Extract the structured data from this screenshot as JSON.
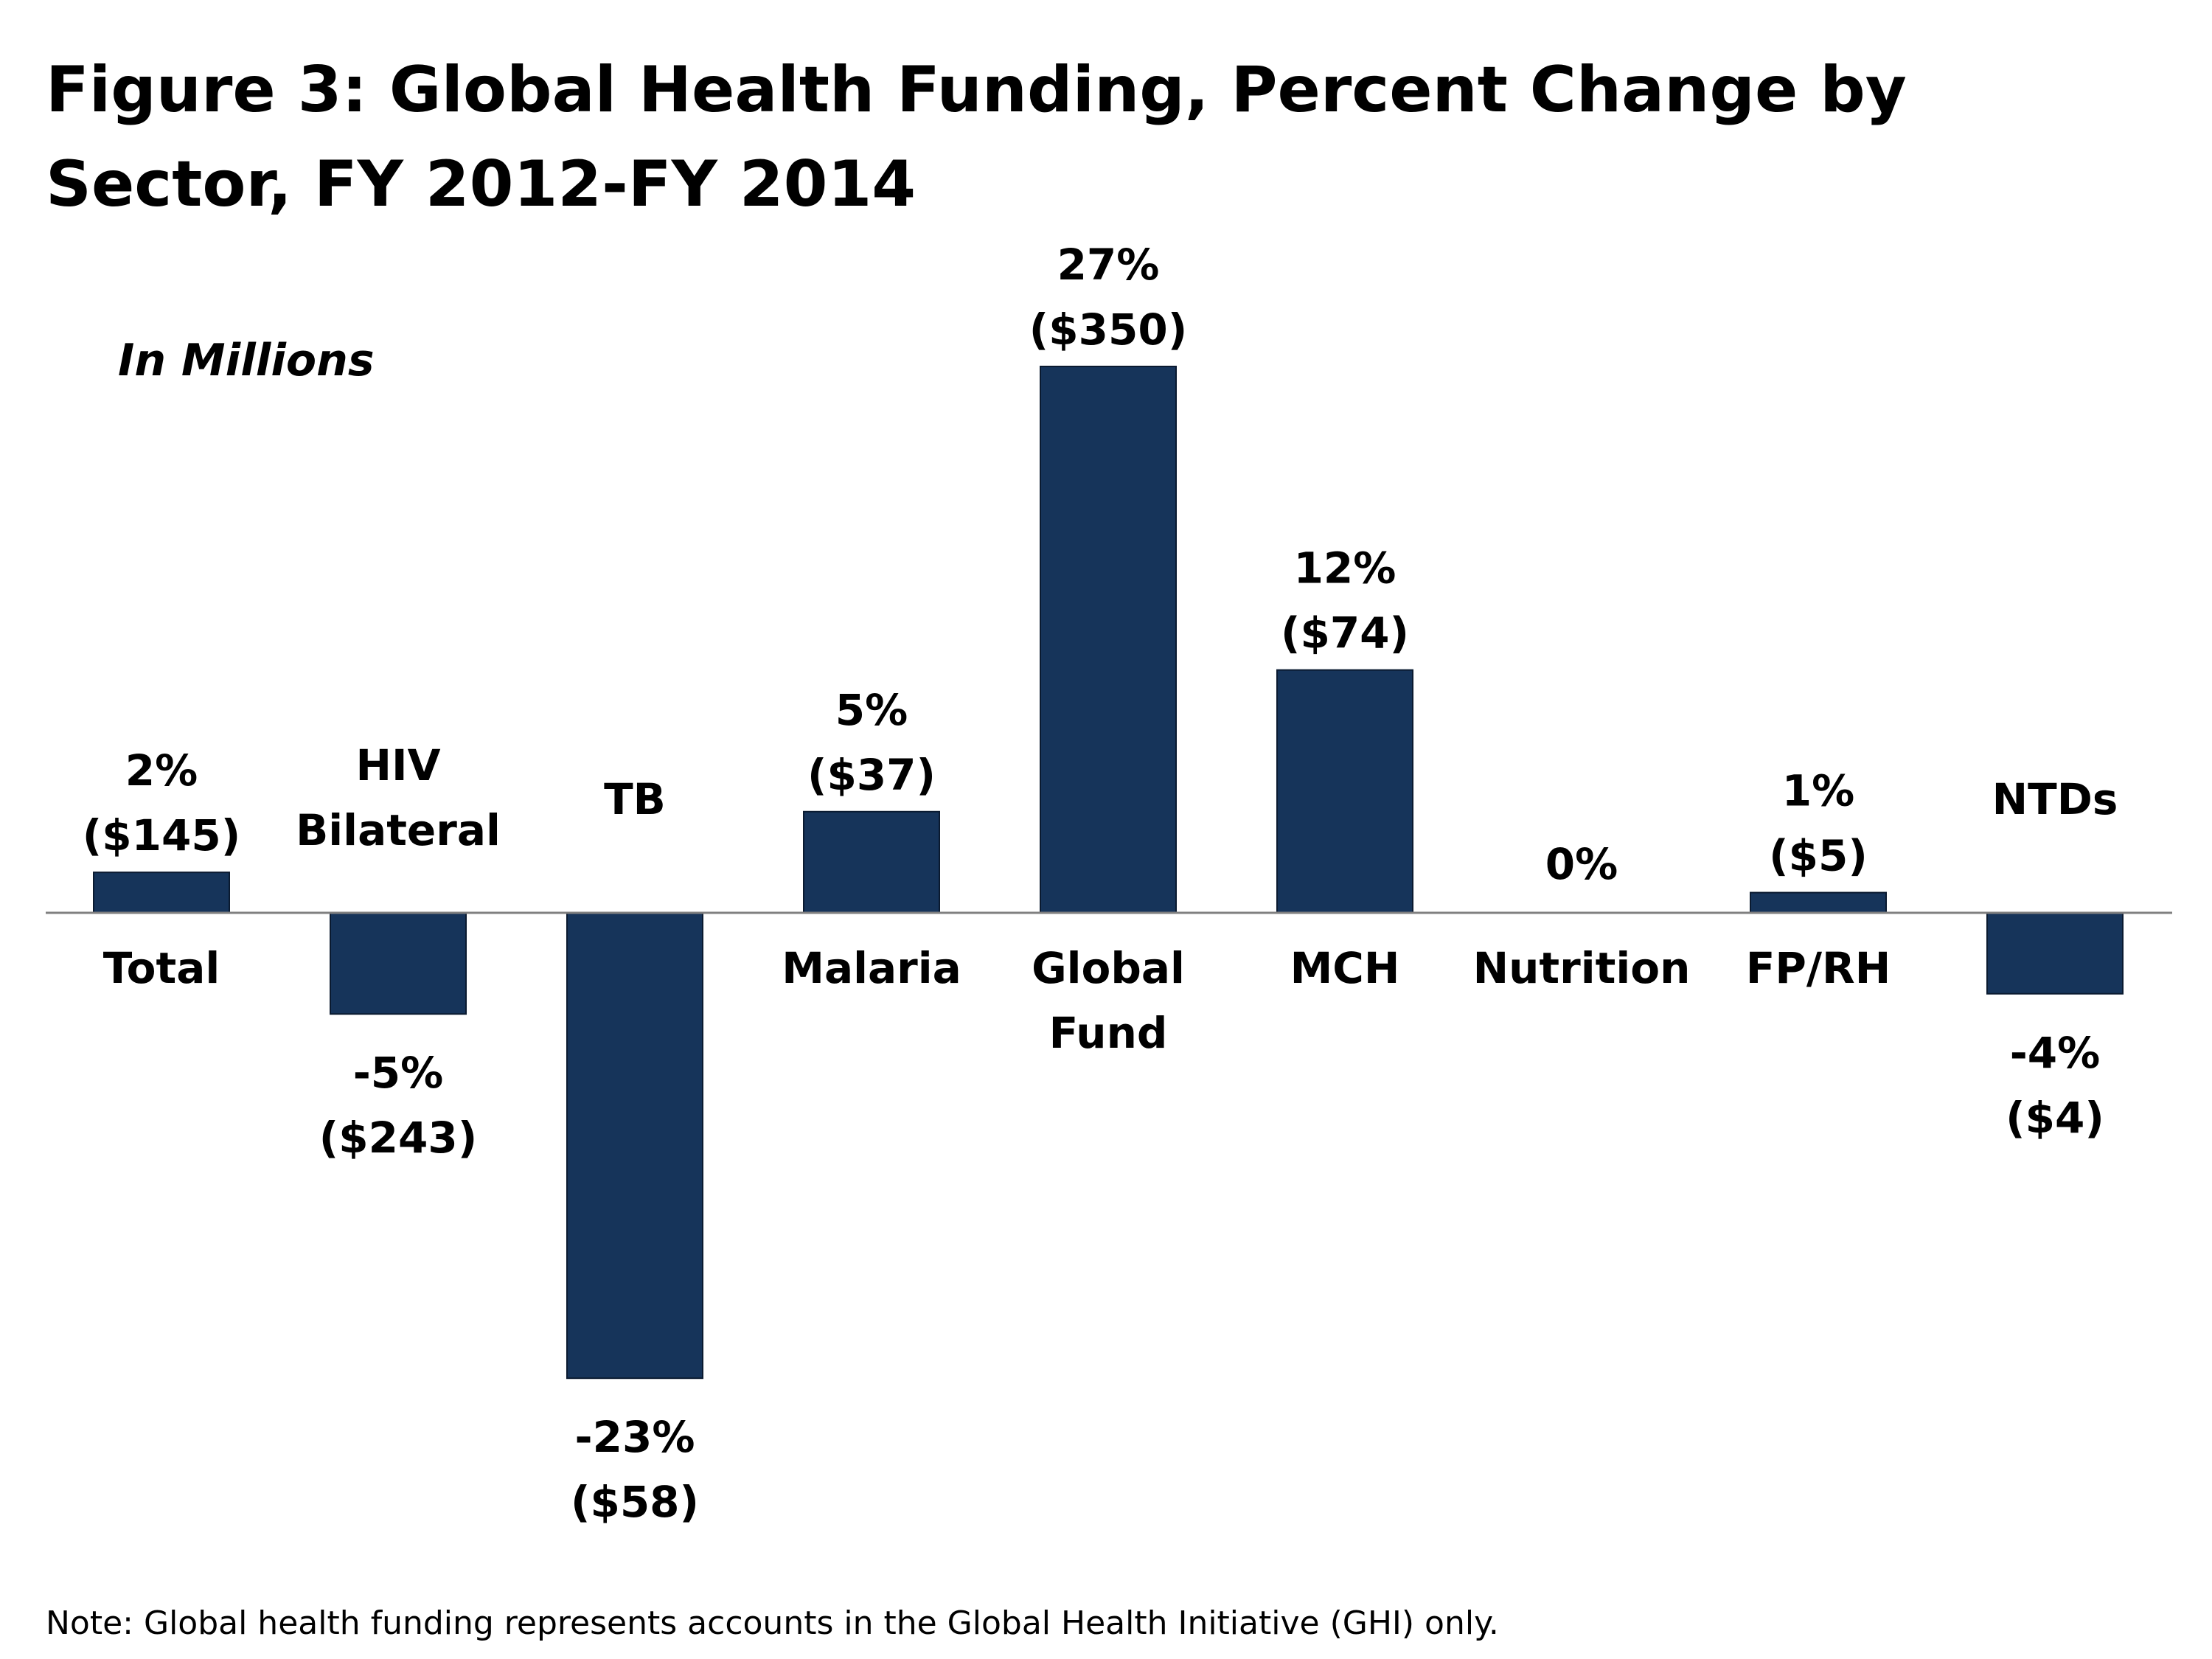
{
  "title": "Figure 3: Global Health Funding, Percent Change by Sector, FY 2012-FY 2014",
  "subtitle": "In Millions",
  "note": "Note: Global health funding represents accounts in the Global Health Initiative (GHI) only.",
  "colors": {
    "bar": "#16345a",
    "axis": "#808080"
  },
  "chart_data": {
    "type": "bar",
    "title": "Figure 3: Global Health Funding, Percent Change by Sector, FY 2012-FY 2014",
    "ylabel": "",
    "unit": "In Millions",
    "categories": [
      [
        "Total"
      ],
      [
        "HIV",
        "Bilateral"
      ],
      [
        "TB"
      ],
      [
        "Malaria"
      ],
      [
        "Global",
        "Fund"
      ],
      [
        "MCH"
      ],
      [
        "Nutrition"
      ],
      [
        "FP/RH"
      ],
      [
        "NTDs"
      ]
    ],
    "values": [
      2,
      -5,
      -23,
      5,
      27,
      12,
      0,
      1,
      -4
    ],
    "value_labels": [
      "2%",
      "-5%",
      "-23%",
      "5%",
      "27%",
      "12%",
      "0%",
      "1%",
      "-4%"
    ],
    "amount_labels": [
      "($145)",
      "($243)",
      "($58)",
      "($37)",
      "($350)",
      "($74)",
      "",
      "($5)",
      "($4)"
    ],
    "ylim": [
      -23,
      27
    ],
    "grid": false,
    "legend": "none"
  }
}
